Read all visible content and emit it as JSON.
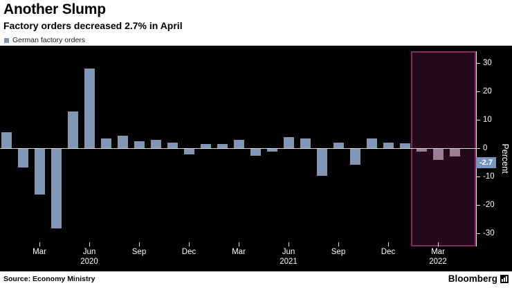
{
  "header": {
    "title": "Another Slump",
    "subtitle": "Factory orders decreased 2.7% in April"
  },
  "legend": {
    "label": "German factory orders"
  },
  "footer": {
    "source": "Source: Economy Ministry",
    "brand": "Bloomberg"
  },
  "chart_data": {
    "type": "bar",
    "title": "Another Slump",
    "subtitle": "Factory orders decreased 2.7% in April",
    "series_name": "German factory orders",
    "ylabel": "Percent",
    "ylim": [
      -30,
      30
    ],
    "yticks": [
      30,
      20,
      10,
      0,
      -10,
      -20,
      -30
    ],
    "grid": "zero-line-only",
    "legend_position": "top-left",
    "x": [
      "Jan 2020",
      "Feb 2020",
      "Mar 2020",
      "Apr 2020",
      "May 2020",
      "Jun 2020",
      "Jul 2020",
      "Aug 2020",
      "Sep 2020",
      "Oct 2020",
      "Nov 2020",
      "Dec 2020",
      "Jan 2021",
      "Feb 2021",
      "Mar 2021",
      "Apr 2021",
      "May 2021",
      "Jun 2021",
      "Jul 2021",
      "Aug 2021",
      "Sep 2021",
      "Oct 2021",
      "Nov 2021",
      "Dec 2021",
      "Jan 2022",
      "Feb 2022",
      "Mar 2022",
      "Apr 2022"
    ],
    "values": [
      5.5,
      -6.5,
      -16,
      -28,
      13,
      28,
      3.5,
      4.5,
      2.5,
      3,
      2,
      -2,
      1.5,
      1.5,
      3,
      -2.5,
      -1,
      4,
      3.5,
      -9.5,
      2,
      -5.5,
      3.5,
      2,
      1.8,
      -1,
      -4,
      -2.7
    ],
    "xticks": [
      {
        "index": 2,
        "label": "Mar"
      },
      {
        "index": 5,
        "label": "Jun",
        "year": "2020"
      },
      {
        "index": 8,
        "label": "Sep"
      },
      {
        "index": 11,
        "label": "Dec"
      },
      {
        "index": 14,
        "label": "Mar"
      },
      {
        "index": 17,
        "label": "Jun",
        "year": "2021"
      },
      {
        "index": 20,
        "label": "Sep"
      },
      {
        "index": 23,
        "label": "Dec"
      },
      {
        "index": 26,
        "label": "Mar",
        "year": "2022"
      }
    ],
    "highlight": {
      "start_index": 25,
      "end_index": 27
    },
    "annotation": {
      "label": "-2.7",
      "index": 27
    },
    "colors": {
      "bar": "#8296b4",
      "highlight_bar": "#9b7d95",
      "highlight_fill": "rgba(182,44,128,0.20)",
      "highlight_edge": "rgba(214,66,156,0.55)",
      "annotation_bg": "#7697bd",
      "plot_bg": "#000000",
      "axis_text": "#ffffff"
    }
  }
}
